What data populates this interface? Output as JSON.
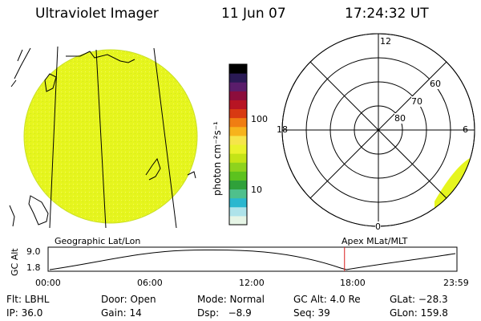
{
  "header": {
    "title": "Ultraviolet Imager",
    "date": "11 Jun 07",
    "time": "17:24:32 UT"
  },
  "colorbar": {
    "unit_label": "photon cm⁻²s⁻¹",
    "tick_100": "100",
    "tick_10": "10",
    "colors": [
      "#e6f5e6",
      "#aee3ea",
      "#2ab7cf",
      "#4fc08c",
      "#2fa13a",
      "#5cc21e",
      "#8ed31d",
      "#c4e416",
      "#eaf22c",
      "#f6e54a",
      "#f7b31c",
      "#f07d12",
      "#d83a12",
      "#b71423",
      "#8c0d3c",
      "#5a1d6b",
      "#2a1a55",
      "#000000"
    ]
  },
  "polar_plot": {
    "hour_top": "12",
    "hour_left": "18",
    "hour_right": "6",
    "hour_bottom": "0",
    "lat_60": "60",
    "lat_70": "70",
    "lat_80": "80"
  },
  "timeline": {
    "axis_label": "GC Alt",
    "upper_value": "9.0",
    "lower_value": "1.8",
    "left_caption": "Geographic Lat/Lon",
    "right_caption": "Apex MLat/MLT",
    "ticks": [
      "00:00",
      "06:00",
      "12:00",
      "18:00",
      "23:59"
    ],
    "marker_time_fraction": 0.725
  },
  "info": {
    "flt": "Flt: LBHL",
    "door": "Door: Open",
    "mode": "Mode: Normal",
    "gc_alt": "GC Alt: 4.0 Re",
    "glat": "GLat: −28.3",
    "ip": "IP: 36.0",
    "gain": "Gain: 14",
    "dsp": "Dsp:   −8.9",
    "seq": "Seq: 39",
    "glon": "GLon: 159.8"
  },
  "colors": {
    "image_fill": "#e6f51e",
    "marker": "#d81e1e"
  }
}
